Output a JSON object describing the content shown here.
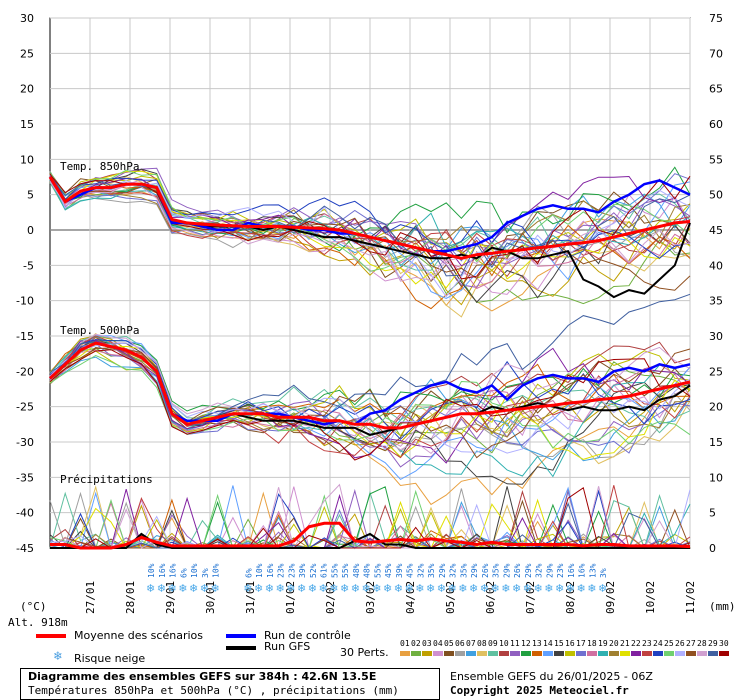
{
  "chart_data": {
    "type": "line",
    "title": "Diagramme des ensembles GEFS sur 384h : 42.6N 13.5E",
    "subtitle": "Températures 850hPa et 500hPa (°C) , précipitations (mm)",
    "left_axis": {
      "unit": "(°C)",
      "range": [
        -45,
        30
      ],
      "ticks": [
        30,
        25,
        20,
        15,
        10,
        5,
        0,
        -5,
        -10,
        -15,
        -20,
        -25,
        -30,
        -35,
        -40,
        -45
      ]
    },
    "right_axis": {
      "unit": "(mm)",
      "range": [
        0,
        75
      ],
      "ticks": [
        75,
        70,
        65,
        60,
        55,
        50,
        45,
        40,
        35,
        30,
        25,
        20,
        15,
        10,
        5,
        0
      ]
    },
    "x_labels": [
      "27/01",
      "28/01",
      "29/01",
      "30/01",
      "31/01",
      "01/02",
      "02/02",
      "03/02",
      "04/02",
      "05/02",
      "06/02",
      "07/02",
      "08/02",
      "09/02",
      "10/02",
      "11/02"
    ],
    "panel_labels": {
      "t850": "Temp. 850hPa",
      "t500": "Temp. 500hPa",
      "precip": "Précipitations"
    },
    "altitude": "Alt. 918m",
    "snow_risk_row_1": [
      "10%",
      "",
      "",
      "",
      "",
      "",
      "",
      "",
      "",
      "",
      "10%",
      "",
      "",
      "",
      "",
      "",
      "",
      "",
      "",
      "",
      "",
      "",
      "",
      "",
      "",
      "",
      "",
      "",
      "",
      "",
      "",
      "",
      "",
      "",
      "",
      "",
      "",
      "",
      "",
      "",
      "",
      "",
      "",
      "",
      "",
      ""
    ],
    "snow_risk": [
      "10%",
      "16%",
      "16%",
      "6%",
      "10%",
      "3%",
      "10%",
      "6%",
      "10%",
      "16%",
      "23%",
      "23%",
      "39%",
      "52%",
      "61%",
      "55%",
      "55%",
      "48%",
      "48%",
      "55%",
      "45%",
      "39%",
      "45%",
      "32%",
      "35%",
      "29%",
      "32%",
      "35%",
      "29%",
      "26%",
      "35%",
      "29%",
      "26%",
      "29%",
      "32%",
      "29%",
      "23%",
      "16%",
      "16%",
      "13%",
      "3%"
    ],
    "series": [
      {
        "name": "Moyenne des scénarios",
        "t850": [
          7.5,
          4,
          5.5,
          6,
          6,
          6.5,
          6.5,
          6,
          1.5,
          1,
          0.8,
          0.7,
          0.6,
          0.5,
          0.5,
          0.5,
          0.4,
          0.3,
          0.2,
          0,
          -0.5,
          -1,
          -1.5,
          -2,
          -2.5,
          -3,
          -3.5,
          -4,
          -3.5,
          -3.3,
          -3,
          -2.8,
          -2.5,
          -2.3,
          -2,
          -1.8,
          -1.5,
          -1,
          -0.5,
          0,
          0.5,
          1,
          1.2
        ],
        "t500": [
          -21,
          -19,
          -17,
          -16,
          -16.5,
          -17,
          -18,
          -20,
          -26,
          -27.5,
          -27,
          -26.5,
          -26,
          -26,
          -26,
          -26.5,
          -26.5,
          -26.5,
          -27,
          -27,
          -27.5,
          -27.5,
          -28,
          -28,
          -27.5,
          -27,
          -26.5,
          -26,
          -26,
          -25.8,
          -25.5,
          -25.3,
          -25,
          -24.8,
          -24.5,
          -24.3,
          -24,
          -23.8,
          -23.5,
          -23,
          -22.5,
          -22,
          -21.5
        ],
        "precip": [
          0.5,
          0.5,
          0,
          0,
          0,
          0.5,
          1.5,
          0.8,
          0.3,
          0.3,
          0.3,
          0.3,
          0.3,
          0.3,
          0.3,
          0.3,
          1,
          3,
          3.5,
          3.5,
          1,
          0.8,
          1,
          1.2,
          1,
          1.3,
          1,
          0.8,
          0.5,
          0.8,
          0.5,
          0.5,
          0.5,
          0.5,
          0.5,
          0.3,
          0.5,
          0.5,
          0.3,
          0.3,
          0.3,
          0.3,
          0.2
        ]
      },
      {
        "name": "Run de contrôle",
        "t850": [
          7.5,
          4,
          5,
          6,
          6,
          6.5,
          6.5,
          6,
          1,
          1,
          0.5,
          0,
          0,
          1,
          0.5,
          0.5,
          0.5,
          0,
          0,
          -0.5,
          -0.5,
          -1,
          -1.5,
          -2,
          -2.5,
          -3,
          -3,
          -2.5,
          -2,
          -1,
          1,
          2,
          3,
          3.5,
          3,
          3,
          2.5,
          4,
          5,
          6.5,
          7,
          6,
          5
        ],
        "t500": [
          -21,
          -19,
          -17,
          -16,
          -16.5,
          -17,
          -18,
          -20,
          -26,
          -27,
          -27,
          -27,
          -26,
          -26,
          -26,
          -26,
          -26.5,
          -27,
          -27.5,
          -27,
          -27.5,
          -26,
          -25.5,
          -24,
          -23,
          -22,
          -21.5,
          -22.5,
          -23,
          -22,
          -24,
          -22,
          -21,
          -20.5,
          -21,
          -21,
          -21.5,
          -20,
          -19.5,
          -20,
          -19,
          -19.5,
          -19
        ]
      },
      {
        "name": "Run GFS",
        "t850": [
          7.5,
          4,
          5.5,
          6,
          6,
          6.5,
          6.5,
          6,
          1,
          1,
          0.5,
          0.5,
          0.5,
          0.5,
          0,
          0.5,
          0,
          -0.5,
          -1,
          -1,
          -1.5,
          -2,
          -2.5,
          -3,
          -3.5,
          -4,
          -4,
          -3.5,
          -4,
          -2.5,
          -3,
          -4,
          -4,
          -3.5,
          -3,
          -7,
          -8,
          -9.5,
          -8.5,
          -9,
          -7,
          -5,
          1
        ],
        "t500": [
          -21,
          -19,
          -17,
          -16,
          -16.5,
          -17,
          -18,
          -20,
          -26,
          -27.5,
          -27,
          -27,
          -26,
          -26.5,
          -27,
          -27,
          -27,
          -27.5,
          -28,
          -28,
          -28,
          -29,
          -28.5,
          -28,
          -27.5,
          -27,
          -26.5,
          -26,
          -26,
          -25,
          -25.5,
          -25,
          -24.5,
          -25,
          -25.5,
          -25,
          -25.5,
          -25.5,
          -25,
          -25.5,
          -24,
          -23.5,
          -22
        ],
        "precip": [
          0,
          0,
          0,
          0,
          0,
          0,
          2,
          0.5,
          0,
          0,
          0,
          0,
          0,
          0,
          0,
          0,
          0,
          0,
          0,
          0,
          1,
          2,
          0.5,
          0.5,
          0,
          0,
          0,
          0,
          0,
          0,
          0,
          0,
          0,
          0,
          0,
          0,
          0,
          0,
          0,
          0,
          0,
          0,
          0
        ]
      }
    ],
    "perturbation_count": 30,
    "perturbation_ids": [
      "01",
      "02",
      "03",
      "04",
      "05",
      "06",
      "07",
      "08",
      "09",
      "10",
      "11",
      "12",
      "13",
      "14",
      "15",
      "16",
      "17",
      "18",
      "19",
      "20",
      "21",
      "22",
      "23",
      "24",
      "25",
      "26",
      "27",
      "28",
      "29",
      "30"
    ],
    "perturbation_colors": [
      "#e8a040",
      "#70b040",
      "#c0a000",
      "#d090d0",
      "#805020",
      "#a0a0a0",
      "#40a0e0",
      "#e0c060",
      "#60c0a0",
      "#b04040",
      "#9060c0",
      "#20a040",
      "#d06000",
      "#60a0ff",
      "#404040",
      "#c0c000",
      "#7070d0",
      "#d070a0",
      "#30b0b0",
      "#a08030",
      "#e0e000",
      "#8020a0",
      "#c04040",
      "#2040c0",
      "#70d070",
      "#b0b0ff",
      "#905020",
      "#d0a0d0",
      "#4060a0",
      "#a00000"
    ],
    "ensemble_info": "Ensemble GEFS du 26/01/2025 - 06Z",
    "copyright": "Copyright 2025 Meteociel.fr"
  },
  "legend": {
    "mean": "Moyenne des scénarios",
    "control": "Run de contrôle",
    "gfs": "Run GFS",
    "snow": "Risque neige",
    "perts": "30 Perts.",
    "colors": {
      "mean": "#ff0000",
      "control": "#0000ff",
      "gfs": "#000000"
    }
  }
}
